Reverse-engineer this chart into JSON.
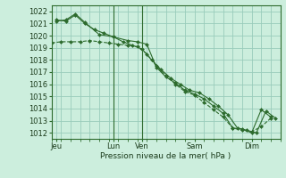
{
  "bg_color": "#cceedd",
  "grid_color": "#99ccbb",
  "line_color": "#2d6b2d",
  "ylabel_text": "Pression niveau de la mer( hPa )",
  "ylim": [
    1011.5,
    1022.5
  ],
  "yticks": [
    1012,
    1013,
    1014,
    1015,
    1016,
    1017,
    1018,
    1019,
    1020,
    1021,
    1022
  ],
  "xlim": [
    0,
    96
  ],
  "xtick_positions": [
    2,
    26,
    38,
    60,
    84
  ],
  "xtick_labels": [
    "Jeu",
    "Lun",
    "Ven",
    "Sam",
    "Dim"
  ],
  "vlines_x": [
    26,
    38
  ],
  "series": [
    {
      "x": [
        0,
        4,
        8,
        12,
        16,
        20,
        24,
        28,
        32,
        36,
        40,
        44,
        48,
        52,
        56,
        60,
        64,
        68,
        72,
        76,
        80,
        84,
        88,
        92
      ],
      "y": [
        1019.4,
        1019.5,
        1019.5,
        1019.5,
        1019.6,
        1019.5,
        1019.4,
        1019.3,
        1019.2,
        1019.1,
        1018.5,
        1017.5,
        1016.7,
        1016.0,
        1015.4,
        1015.1,
        1014.5,
        1013.9,
        1013.3,
        1012.4,
        1012.2,
        1012.1,
        1012.5,
        1013.2
      ],
      "style": "--",
      "marker": "D",
      "markersize": 2.0
    },
    {
      "x": [
        2,
        6,
        10,
        14,
        18,
        22,
        26,
        30,
        34,
        38,
        42,
        46,
        50,
        54,
        58,
        62,
        66,
        70,
        74,
        78,
        82,
        86,
        90,
        94
      ],
      "y": [
        1021.3,
        1021.2,
        1021.7,
        1021.0,
        1020.5,
        1020.2,
        1019.9,
        1019.5,
        1019.2,
        1018.9,
        1018.0,
        1017.2,
        1016.5,
        1016.0,
        1015.5,
        1015.3,
        1014.8,
        1014.2,
        1013.5,
        1012.4,
        1012.2,
        1012.0,
        1013.8,
        1013.2
      ],
      "style": "-",
      "marker": "D",
      "markersize": 2.0
    },
    {
      "x": [
        2,
        6,
        10,
        14,
        20,
        26,
        32,
        36,
        40,
        44,
        48,
        52,
        56,
        60,
        64,
        68,
        72,
        76,
        80,
        84,
        88,
        92
      ],
      "y": [
        1021.2,
        1021.3,
        1021.8,
        1021.1,
        1020.1,
        1019.9,
        1019.6,
        1019.5,
        1019.3,
        1017.4,
        1016.6,
        1016.1,
        1015.5,
        1015.2,
        1014.8,
        1014.2,
        1013.6,
        1012.4,
        1012.3,
        1012.0,
        1013.9,
        1013.3
      ],
      "style": "-",
      "marker": "D",
      "markersize": 2.0
    }
  ],
  "figsize": [
    3.2,
    2.0
  ],
  "dpi": 100
}
